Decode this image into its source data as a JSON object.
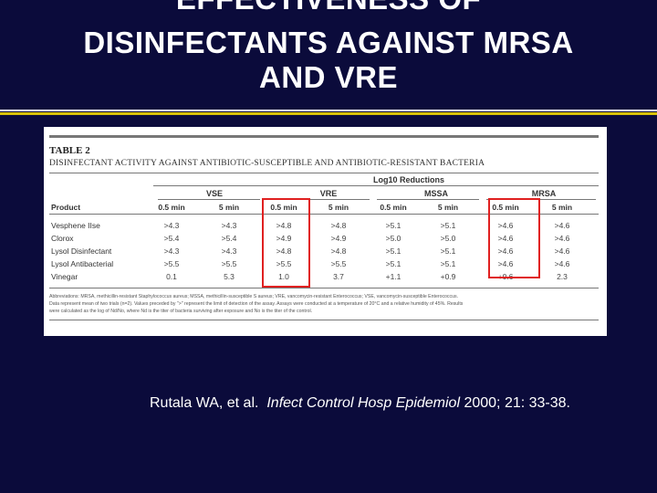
{
  "title": {
    "line1": "EFFECTIVENESS OF",
    "line2": "DISINFECTANTS AGAINST MRSA",
    "line3": "AND VRE"
  },
  "colors": {
    "background": "#0b0b3b",
    "rule_white": "#ffffff",
    "rule_yellow": "#d8c20a",
    "highlight_box": "#e02020"
  },
  "table": {
    "label": "TABLE 2",
    "caption": "DISINFECTANT ACTIVITY AGAINST ANTIBIOTIC-SUSCEPTIBLE AND ANTIBIOTIC-RESISTANT BACTERIA",
    "log_reductions_header": "Log10 Reductions",
    "product_header": "Product",
    "groups": [
      "VSE",
      "VRE",
      "MSSA",
      "MRSA"
    ],
    "subheaders": [
      "0.5 min",
      "5 min",
      "0.5 min",
      "5 min",
      "0.5 min",
      "5 min",
      "0.5 min",
      "5 min"
    ],
    "rows": [
      {
        "product": "Vesphene IIse",
        "values": [
          ">4.3",
          ">4.3",
          ">4.8",
          ">4.8",
          ">5.1",
          ">5.1",
          ">4.6",
          ">4.6"
        ]
      },
      {
        "product": "Clorox",
        "values": [
          ">5.4",
          ">5.4",
          ">4.9",
          ">4.9",
          ">5.0",
          ">5.0",
          ">4.6",
          ">4.6"
        ]
      },
      {
        "product": "Lysol Disinfectant",
        "values": [
          ">4.3",
          ">4.3",
          ">4.8",
          ">4.8",
          ">5.1",
          ">5.1",
          ">4.6",
          ">4.6"
        ]
      },
      {
        "product": "Lysol Antibacterial",
        "values": [
          ">5.5",
          ">5.5",
          ">5.5",
          ">5.5",
          ">5.1",
          ">5.1",
          ">4.6",
          ">4.6"
        ]
      },
      {
        "product": "Vinegar",
        "values": [
          "0.1",
          "5.3",
          "1.0",
          "3.7",
          "+1.1",
          "+0.9",
          "+0.6",
          "2.3"
        ]
      }
    ],
    "footnotes": [
      "Abbreviations: MRSA, methicillin-resistant Staphylococcus aureus; MSSA, methicillin-susceptible S aureus; VRE, vancomycin-resistant Enterococcus; VSE, vancomycin-susceptible Enterococcus.",
      "Data represent mean of two trials (n=2). Values preceded by \">\" represent the limit of detection of the assay. Assays were conducted at a temperature of 20°C and a relative humidity of 45%. Results",
      "were calculated as the log of Nd/No, where Nd is the titer of bacteria surviving after exposure and No is the titer of the control."
    ]
  },
  "citation": {
    "authors": "Rutala WA, et al.",
    "journal": "Infect Control Hosp Epidemiol",
    "details": "2000; 21: 33-38."
  }
}
